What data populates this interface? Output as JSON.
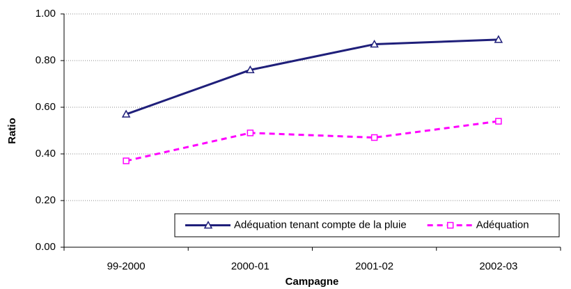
{
  "chart_data": {
    "type": "line",
    "categories": [
      "99-2000",
      "2000-01",
      "2001-02",
      "2002-03"
    ],
    "series": [
      {
        "name": "Adéquation tenant compte de la pluie",
        "color": "#1f1f7a",
        "marker": "triangle",
        "dash": false,
        "values": [
          0.57,
          0.76,
          0.87,
          0.89
        ]
      },
      {
        "name": "Adéquation",
        "color": "#ff00ff",
        "marker": "square",
        "dash": true,
        "values": [
          0.37,
          0.49,
          0.47,
          0.54
        ]
      }
    ],
    "x_label": "Campagne",
    "y_label": "Ratio",
    "ylim": [
      0,
      1
    ],
    "yticks": [
      {
        "value": 0,
        "label": "0.00"
      },
      {
        "value": 0.2,
        "label": "0.20"
      },
      {
        "value": 0.4,
        "label": "0.40"
      },
      {
        "value": 0.6,
        "label": "0.60"
      },
      {
        "value": 0.8,
        "label": "0.80"
      },
      {
        "value": 1,
        "label": "1.00"
      }
    ],
    "grid": true,
    "legend": "lower right"
  }
}
